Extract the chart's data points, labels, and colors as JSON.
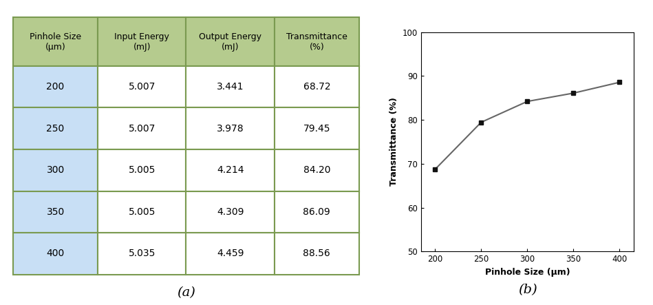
{
  "pinhole_sizes": [
    200,
    250,
    300,
    350,
    400
  ],
  "input_energy": [
    5.007,
    5.007,
    5.005,
    5.005,
    5.035
  ],
  "output_energy": [
    3.441,
    3.978,
    4.214,
    4.309,
    4.459
  ],
  "transmittance": [
    68.72,
    79.45,
    84.2,
    86.09,
    88.56
  ],
  "header_labels": [
    "Pinhole Size\n(μm)",
    "Input Energy\n(mJ)",
    "Output Energy\n(mJ)",
    "Transmittance\n(%)"
  ],
  "header_bg": "#b5cb8e",
  "col1_bg": "#c8dff5",
  "data_bg": "#ffffff",
  "table_edge_color": "#7a9a50",
  "plot_xlabel": "Pinhole Size (μm)",
  "plot_ylabel": "Transmittance (%)",
  "caption_a": "(a)",
  "caption_b": "(b)",
  "ylim": [
    50,
    100
  ],
  "yticks": [
    50,
    60,
    70,
    80,
    90,
    100
  ],
  "xticks": [
    200,
    250,
    300,
    350,
    400
  ],
  "line_color": "#666666",
  "marker_color": "#111111",
  "marker": "s",
  "markersize": 5,
  "fig_bg": "#f0f0f0"
}
